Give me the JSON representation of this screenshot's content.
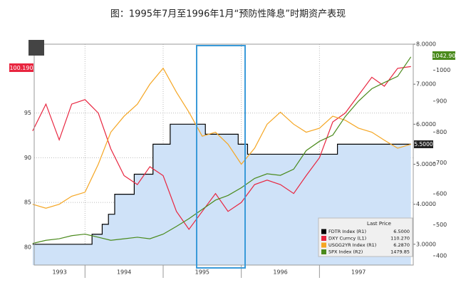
{
  "chart_data": {
    "type": "line",
    "title": "图：1995年7月至1996年1月“预防性降息”时期资产表现",
    "x": [
      1993.33,
      1993.5,
      1993.67,
      1993.83,
      1994,
      1994.17,
      1994.33,
      1994.5,
      1994.67,
      1994.83,
      1995,
      1995.17,
      1995.33,
      1995.5,
      1995.67,
      1995.83,
      1996,
      1996.17,
      1996.33,
      1996.5,
      1996.67,
      1996.83,
      1997,
      1997.17,
      1997.33,
      1997.5,
      1997.67,
      1997.83,
      1998,
      1998.17
    ],
    "xlim": [
      1993.35,
      1998.2
    ],
    "xticks": [
      1993,
      1994,
      1995,
      1996,
      1997
    ],
    "ylim": [
      78,
      102.7
    ],
    "yticks": [
      80,
      85,
      90,
      95
    ],
    "y2lim": [
      2.48,
      8.0
    ],
    "y2ticks": [
      {
        "value": 3,
        "label": "3.0000"
      },
      {
        "value": 4,
        "label": "4.0000"
      },
      {
        "value": 5,
        "label": "5.0000"
      },
      {
        "value": 6,
        "label": "6.0000"
      },
      {
        "value": 7,
        "label": "7.0000"
      },
      {
        "value": 8,
        "label": "8.0000"
      }
    ],
    "y3lim": [
      370,
      1084
    ],
    "y3ticks": [
      400,
      500,
      600,
      700,
      800,
      900,
      1000
    ],
    "grid": true,
    "legend_title": "Last Price",
    "series": [
      {
        "name": "FDTR Index (R1)",
        "last_price": "6.5000",
        "color": "#000000",
        "fill": "#cfe2f8",
        "axis": "y2",
        "step": true,
        "x": [
          1993.33,
          1994.09,
          1994.22,
          1994.3,
          1994.38,
          1994.63,
          1994.87,
          1995.09,
          1995.54,
          1995.96,
          1996.08,
          1997.23,
          1998.17
        ],
        "values": [
          3.0,
          3.25,
          3.5,
          3.75,
          4.25,
          4.75,
          5.5,
          6.0,
          5.75,
          5.5,
          5.25,
          5.5,
          5.5
        ]
      },
      {
        "name": "DXY Curncy (L1)",
        "last_price": "110.270",
        "color": "#e8253f",
        "values": [
          93,
          96,
          92,
          96,
          96.5,
          95,
          91,
          88,
          87,
          89,
          88,
          84,
          82,
          84,
          86,
          84,
          85,
          87,
          87.5,
          87,
          86,
          88,
          90,
          94,
          95,
          97,
          99,
          98,
          100,
          100.2
        ]
      },
      {
        "name": "USGG2YR Index (R1)",
        "last_price": "6.2870",
        "color": "#f5a623",
        "axis": "y2",
        "values": [
          4.0,
          3.9,
          4.0,
          4.2,
          4.3,
          5.0,
          5.8,
          6.2,
          6.5,
          7.0,
          7.4,
          6.8,
          6.3,
          5.7,
          5.8,
          5.5,
          5.0,
          5.4,
          6.0,
          6.3,
          6.0,
          5.8,
          5.9,
          6.2,
          6.1,
          5.9,
          5.8,
          5.6,
          5.4,
          5.5
        ]
      },
      {
        "name": "SPX Index (R2)",
        "last_price": "1479.85",
        "color": "#4a8a1c",
        "axis": "y3",
        "values": [
          440,
          450,
          455,
          465,
          470,
          460,
          450,
          455,
          460,
          455,
          470,
          495,
          520,
          550,
          580,
          595,
          620,
          650,
          665,
          660,
          680,
          740,
          770,
          790,
          850,
          900,
          940,
          960,
          980,
          1042.9
        ]
      }
    ],
    "tags": {
      "left": "100.190",
      "rate": "5.5000",
      "spx": "1042.90"
    }
  }
}
